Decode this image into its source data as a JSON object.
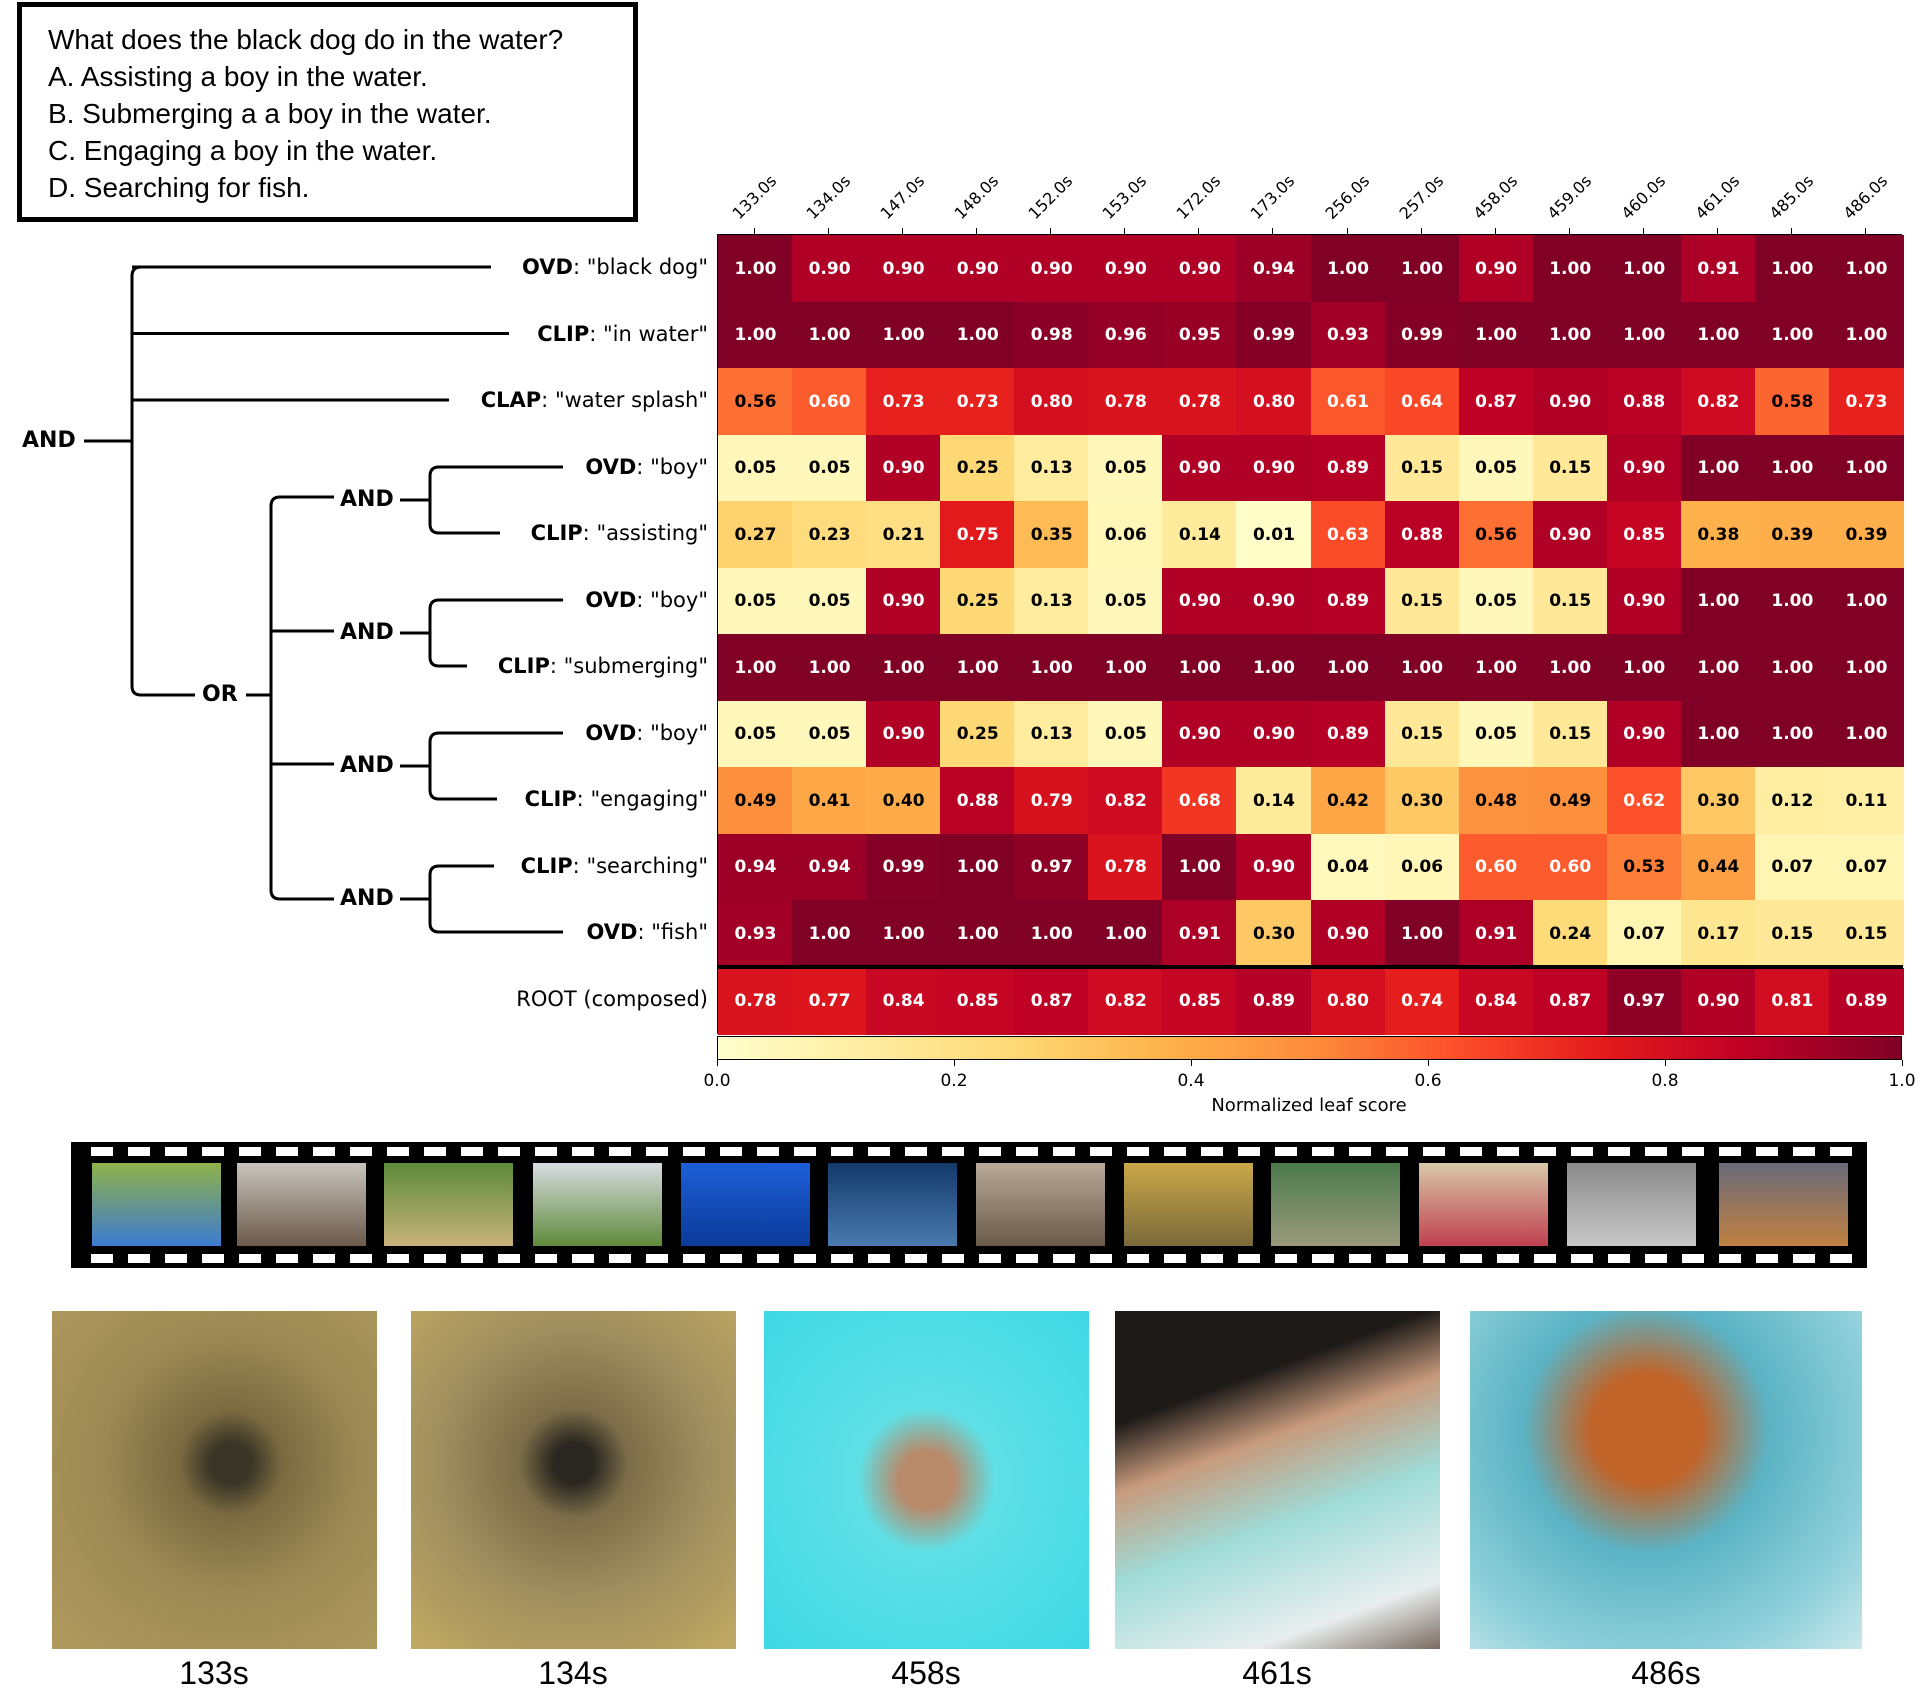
{
  "question": {
    "text": "What does the black dog do in the water?",
    "options": [
      "A. Assisting a boy in the water.",
      "B. Submerging a a boy in the water.",
      "C. Engaging a boy in the water.",
      "D. Searching for fish."
    ]
  },
  "tree": {
    "root": "AND",
    "or": "OR",
    "and_nodes": [
      "AND",
      "AND",
      "AND",
      "AND"
    ]
  },
  "chart_data": {
    "type": "heatmap",
    "colormap": "YlOrRd",
    "columns": [
      "133.0s",
      "134.0s",
      "147.0s",
      "148.0s",
      "152.0s",
      "153.0s",
      "172.0s",
      "173.0s",
      "256.0s",
      "257.0s",
      "458.0s",
      "459.0s",
      "460.0s",
      "461.0s",
      "485.0s",
      "486.0s"
    ],
    "rows": [
      {
        "model": "OVD",
        "query": "\"black dog\"",
        "values": [
          1.0,
          0.9,
          0.9,
          0.9,
          0.9,
          0.9,
          0.9,
          0.94,
          1.0,
          1.0,
          0.9,
          1.0,
          1.0,
          0.91,
          1.0,
          1.0
        ]
      },
      {
        "model": "CLIP",
        "query": "\"in water\"",
        "values": [
          1.0,
          1.0,
          1.0,
          1.0,
          0.98,
          0.96,
          0.95,
          0.99,
          0.93,
          0.99,
          1.0,
          1.0,
          1.0,
          1.0,
          1.0,
          1.0
        ]
      },
      {
        "model": "CLAP",
        "query": "\"water splash\"",
        "values": [
          0.56,
          0.6,
          0.73,
          0.73,
          0.8,
          0.78,
          0.78,
          0.8,
          0.61,
          0.64,
          0.87,
          0.9,
          0.88,
          0.82,
          0.58,
          0.73
        ]
      },
      {
        "model": "OVD",
        "query": "\"boy\"",
        "values": [
          0.05,
          0.05,
          0.9,
          0.25,
          0.13,
          0.05,
          0.9,
          0.9,
          0.89,
          0.15,
          0.05,
          0.15,
          0.9,
          1.0,
          1.0,
          1.0
        ]
      },
      {
        "model": "CLIP",
        "query": "\"assisting\"",
        "values": [
          0.27,
          0.23,
          0.21,
          0.75,
          0.35,
          0.06,
          0.14,
          0.01,
          0.63,
          0.88,
          0.56,
          0.9,
          0.85,
          0.38,
          0.39,
          0.39
        ]
      },
      {
        "model": "OVD",
        "query": "\"boy\"",
        "values": [
          0.05,
          0.05,
          0.9,
          0.25,
          0.13,
          0.05,
          0.9,
          0.9,
          0.89,
          0.15,
          0.05,
          0.15,
          0.9,
          1.0,
          1.0,
          1.0
        ]
      },
      {
        "model": "CLIP",
        "query": "\"submerging\"",
        "values": [
          1.0,
          1.0,
          1.0,
          1.0,
          1.0,
          1.0,
          1.0,
          1.0,
          1.0,
          1.0,
          1.0,
          1.0,
          1.0,
          1.0,
          1.0,
          1.0
        ]
      },
      {
        "model": "OVD",
        "query": "\"boy\"",
        "values": [
          0.05,
          0.05,
          0.9,
          0.25,
          0.13,
          0.05,
          0.9,
          0.9,
          0.89,
          0.15,
          0.05,
          0.15,
          0.9,
          1.0,
          1.0,
          1.0
        ]
      },
      {
        "model": "CLIP",
        "query": "\"engaging\"",
        "values": [
          0.49,
          0.41,
          0.4,
          0.88,
          0.79,
          0.82,
          0.68,
          0.14,
          0.42,
          0.3,
          0.48,
          0.49,
          0.62,
          0.3,
          0.12,
          0.11
        ]
      },
      {
        "model": "CLIP",
        "query": "\"searching\"",
        "values": [
          0.94,
          0.94,
          0.99,
          1.0,
          0.97,
          0.78,
          1.0,
          0.9,
          0.04,
          0.06,
          0.6,
          0.6,
          0.53,
          0.44,
          0.07,
          0.07
        ]
      },
      {
        "model": "OVD",
        "query": "\"fish\"",
        "values": [
          0.93,
          1.0,
          1.0,
          1.0,
          1.0,
          1.0,
          0.91,
          0.3,
          0.9,
          1.0,
          0.91,
          0.24,
          0.07,
          0.17,
          0.15,
          0.15
        ]
      }
    ],
    "root_row": {
      "label": "ROOT (composed)",
      "values": [
        0.78,
        0.77,
        0.84,
        0.85,
        0.87,
        0.82,
        0.85,
        0.89,
        0.8,
        0.74,
        0.84,
        0.87,
        0.97,
        0.9,
        0.81,
        0.89
      ]
    },
    "colorbar": {
      "ticks": [
        "0.0",
        "0.2",
        "0.4",
        "0.6",
        "0.8",
        "1.0"
      ],
      "range": [
        0,
        1
      ],
      "label": "Normalized leaf score"
    }
  },
  "keyframes": [
    "133s",
    "134s",
    "458s",
    "461s",
    "486s"
  ]
}
